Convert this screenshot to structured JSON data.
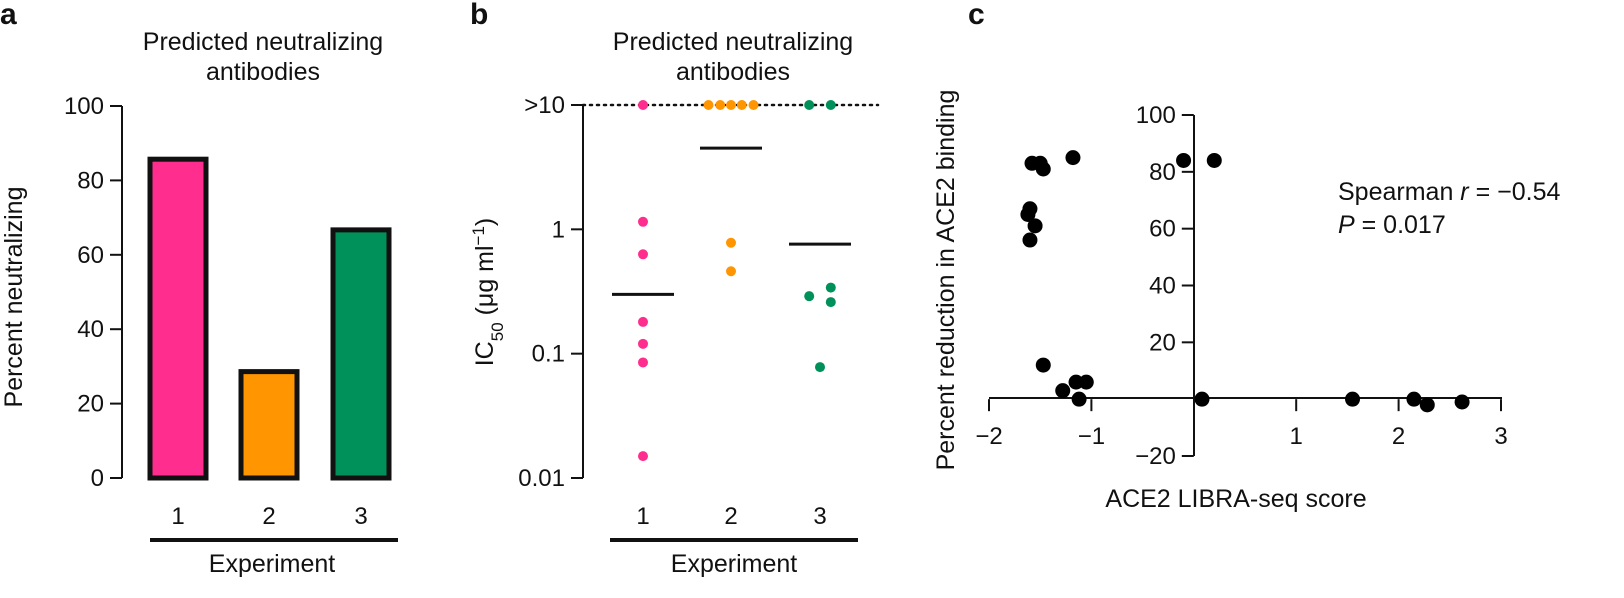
{
  "panels": [
    {
      "label": "a"
    },
    {
      "label": "b"
    },
    {
      "label": "c"
    }
  ],
  "colors": {
    "exp1": "#ff2d8e",
    "exp2": "#ff9500",
    "exp3": "#00915a",
    "black": "#000000"
  },
  "chart_data": [
    {
      "type": "bar",
      "panel": "a",
      "title_line1": "Predicted neutralizing",
      "title_line2": "antibodies",
      "ylabel": "Percent neutralizing",
      "xlabel": "Experiment",
      "ylim": [
        0,
        100
      ],
      "yticks": [
        0,
        20,
        40,
        60,
        80,
        100
      ],
      "categories": [
        "1",
        "2",
        "3"
      ],
      "values": [
        85.7,
        28.6,
        66.7
      ]
    },
    {
      "type": "scatter",
      "panel": "b",
      "title_line1": "Predicted neutralizing",
      "title_line2": "antibodies",
      "ylabel_main": "IC",
      "ylabel_sub": "50",
      "ylabel_rest": " (μg ml",
      "ylabel_sup": "−1",
      "ylabel_close": ")",
      "xlabel": "Experiment",
      "yscale": "log",
      "ylim": [
        0.01,
        10
      ],
      "ytick_labels": [
        "0.01",
        "0.1",
        "1",
        ">10"
      ],
      "ytick_values": [
        0.01,
        0.1,
        1,
        10
      ],
      "categories": [
        "1",
        "2",
        "3"
      ],
      "series": [
        {
          "name": "1",
          "points": [
            [
              0,
              10
            ],
            [
              0,
              1.15
            ],
            [
              0,
              0.63
            ],
            [
              0,
              0.18
            ],
            [
              0,
              0.12
            ],
            [
              0,
              0.085
            ],
            [
              0,
              0.015
            ]
          ],
          "median": 0.3
        },
        {
          "name": "2",
          "points": [
            [
              -0.25,
              10
            ],
            [
              -0.12,
              10
            ],
            [
              0,
              10
            ],
            [
              0.12,
              10
            ],
            [
              0.25,
              10
            ],
            [
              0,
              0.78
            ],
            [
              0,
              0.46
            ]
          ],
          "median": 4.5
        },
        {
          "name": "3",
          "points": [
            [
              -0.12,
              10
            ],
            [
              0.12,
              10
            ],
            [
              -0.12,
              0.29
            ],
            [
              0.12,
              0.34
            ],
            [
              0.12,
              0.26
            ],
            [
              0,
              0.078
            ]
          ],
          "median": 0.76
        }
      ]
    },
    {
      "type": "scatter",
      "panel": "c",
      "ylabel": "Percent reduction in ACE2 binding",
      "xlabel": "ACE2 LIBRA-seq score",
      "xlim": [
        -2,
        3
      ],
      "ylim": [
        -20,
        100
      ],
      "xticks": [
        "−2",
        "−1",
        "1",
        "2",
        "3"
      ],
      "xtick_values": [
        -2,
        -1,
        1,
        2,
        3
      ],
      "yticks": [
        "−20",
        "20",
        "40",
        "60",
        "80",
        "100"
      ],
      "ytick_values": [
        -20,
        20,
        40,
        60,
        80,
        100
      ],
      "stat_label": "Spearman ",
      "stat_r": "r",
      "stat_r_value": " = −0.54",
      "stat_p": "P",
      "stat_p_value": " = 0.017",
      "x": [
        -1.62,
        -1.55,
        -1.5,
        -1.47,
        -1.18,
        -1.6,
        -1.58,
        -1.6,
        -0.1,
        0.2,
        -1.47,
        -1.28,
        -1.15,
        -1.12,
        -1.05,
        0.08,
        1.55,
        2.15,
        2.28,
        2.62
      ],
      "y": [
        65,
        61,
        83,
        81,
        85,
        67,
        83,
        56,
        84,
        84,
        12,
        3,
        6,
        0,
        6,
        0,
        0,
        0,
        -2,
        -1
      ]
    }
  ]
}
